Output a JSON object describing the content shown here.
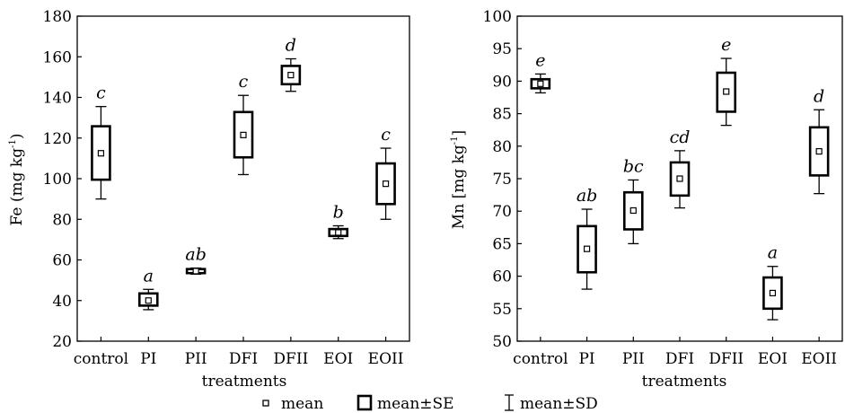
{
  "chart_data": [
    {
      "type": "box",
      "xlabel": "treatments",
      "ylabel_main": "Fe (mg kg",
      "ylabel_sup": "-1",
      "ylabel_end": ")",
      "ylim": [
        20,
        180
      ],
      "yticks": [
        20,
        40,
        60,
        80,
        100,
        120,
        140,
        160,
        180
      ],
      "categories": [
        "control",
        "PI",
        "PII",
        "DFI",
        "DFII",
        "EOI",
        "EOII"
      ],
      "mean": [
        112.5,
        40,
        54.5,
        121.5,
        151,
        73.5,
        97.5
      ],
      "se_low": [
        99.5,
        37.5,
        53.5,
        110.5,
        146.5,
        71.8,
        87.5
      ],
      "se_high": [
        125.8,
        43.5,
        55.5,
        132.8,
        155.5,
        75.2,
        107.5
      ],
      "sd_low": [
        90,
        35.5,
        53,
        102,
        143,
        70.5,
        80
      ],
      "sd_high": [
        135.5,
        45.5,
        56,
        141,
        159,
        76.8,
        115
      ],
      "letters": [
        "c",
        "a",
        "ab",
        "c",
        "d",
        "b",
        "c"
      ]
    },
    {
      "type": "box",
      "xlabel": "treatments",
      "ylabel_main": "Mn [mg kg",
      "ylabel_sup": "-1",
      "ylabel_end": "]",
      "ylim": [
        50,
        100
      ],
      "yticks": [
        50,
        55,
        60,
        65,
        70,
        75,
        80,
        85,
        90,
        95,
        100
      ],
      "categories": [
        "control",
        "PI",
        "PII",
        "DFI",
        "DFII",
        "EOI",
        "EOII"
      ],
      "mean": [
        89.6,
        64.2,
        70.1,
        75,
        88.4,
        57.4,
        79.2
      ],
      "se_low": [
        88.9,
        60.6,
        67.2,
        72.4,
        85.3,
        55,
        75.5
      ],
      "se_high": [
        90.3,
        67.7,
        72.9,
        77.5,
        91.3,
        59.8,
        82.9
      ],
      "sd_low": [
        88.2,
        58,
        65,
        70.5,
        83.2,
        53.3,
        72.7
      ],
      "sd_high": [
        91.1,
        70.3,
        74.8,
        79.3,
        93.5,
        61.5,
        85.6
      ],
      "letters": [
        "e",
        "ab",
        "bc",
        "cd",
        "e",
        "a",
        "d"
      ]
    }
  ],
  "legend": {
    "mean": "mean",
    "se": "mean±SE",
    "sd": "mean±SD"
  }
}
